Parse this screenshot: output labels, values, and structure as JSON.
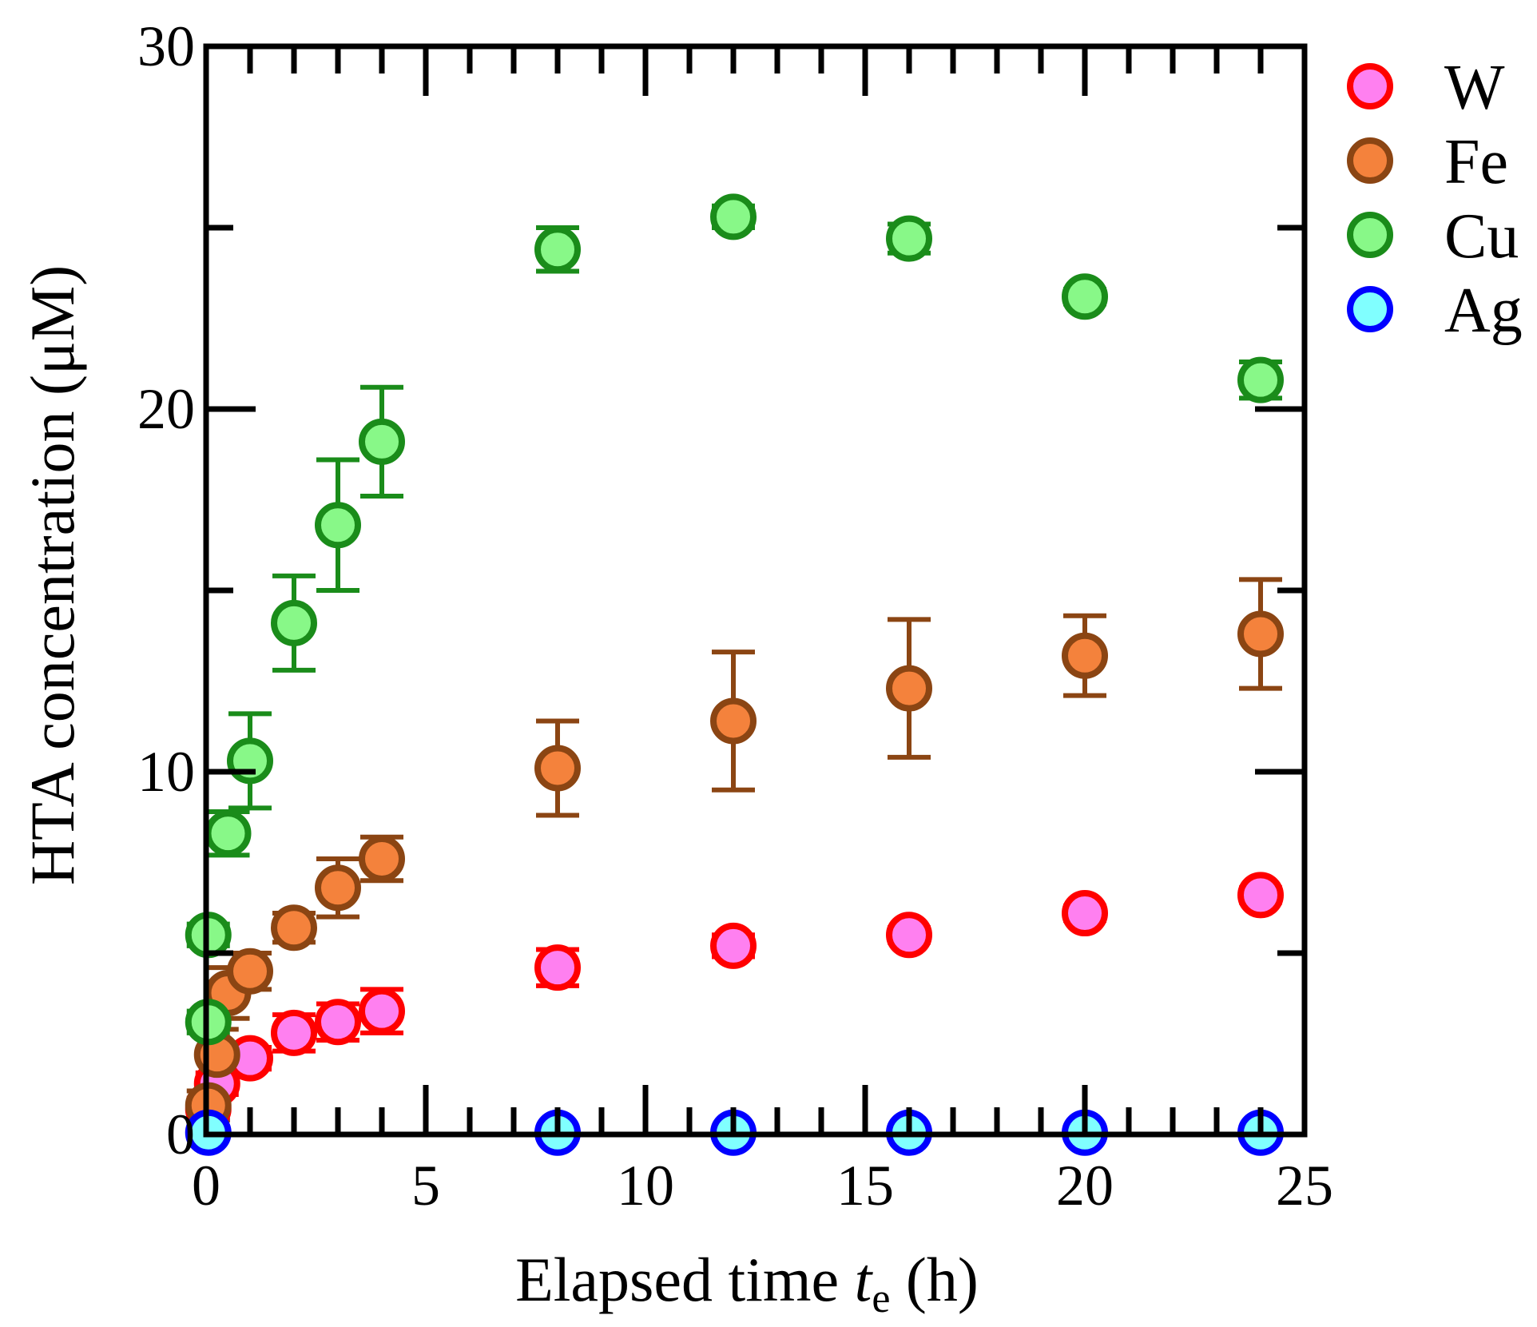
{
  "chart_data": {
    "type": "scatter",
    "xlabel": "Elapsed time",
    "xlabel_var": "t",
    "xlabel_sub": "e",
    "xlabel_unit": "(h)",
    "ylabel": "HTA concentration (μM)",
    "xlim": [
      0,
      25
    ],
    "ylim": [
      0,
      30
    ],
    "x_ticks": [
      0,
      5,
      10,
      15,
      20,
      25
    ],
    "x_tick_labels": [
      "0",
      "5",
      "10",
      "15",
      "20",
      "25"
    ],
    "y_ticks": [
      0,
      10,
      20,
      30
    ],
    "y_tick_labels": [
      "0",
      "10",
      "20",
      "30"
    ],
    "grid": false,
    "legend_position": "right",
    "series": [
      {
        "name": "W",
        "fill": "#ff80f0",
        "stroke": "#ff0000",
        "points": [
          {
            "x": 0.05,
            "y": 0.7,
            "err": 0.3
          },
          {
            "x": 0.25,
            "y": 1.4,
            "err": 0.3
          },
          {
            "x": 1,
            "y": 2.1,
            "err": 0.3
          },
          {
            "x": 2,
            "y": 2.8,
            "err": 0.5
          },
          {
            "x": 3,
            "y": 3.1,
            "err": 0.5
          },
          {
            "x": 4,
            "y": 3.4,
            "err": 0.6
          },
          {
            "x": 8,
            "y": 4.6,
            "err": 0.5
          },
          {
            "x": 12,
            "y": 5.2,
            "err": 0.3
          },
          {
            "x": 16,
            "y": 5.5,
            "err": 0.2
          },
          {
            "x": 20,
            "y": 6.1,
            "err": 0.2
          },
          {
            "x": 24,
            "y": 6.6,
            "err": 0.2
          }
        ]
      },
      {
        "name": "Fe",
        "fill": "#f4823c",
        "stroke": "#8b4513",
        "points": [
          {
            "x": 0.05,
            "y": 0.8,
            "err": 0.4
          },
          {
            "x": 0.25,
            "y": 2.2,
            "err": 0.7
          },
          {
            "x": 0.5,
            "y": 3.9,
            "err": 0.7
          },
          {
            "x": 1,
            "y": 4.5,
            "err": 0.5
          },
          {
            "x": 2,
            "y": 5.7,
            "err": 0.4
          },
          {
            "x": 3,
            "y": 6.8,
            "err": 0.8
          },
          {
            "x": 4,
            "y": 7.6,
            "err": 0.6
          },
          {
            "x": 8,
            "y": 10.1,
            "err": 1.3
          },
          {
            "x": 12,
            "y": 11.4,
            "err": 1.9
          },
          {
            "x": 16,
            "y": 12.3,
            "err": 1.9
          },
          {
            "x": 20,
            "y": 13.2,
            "err": 1.1
          },
          {
            "x": 24,
            "y": 13.8,
            "err": 1.5
          }
        ]
      },
      {
        "name": "Cu",
        "fill": "#88f888",
        "stroke": "#1a8c1a",
        "points": [
          {
            "x": 0.05,
            "y": 3.1,
            "err": 0.3
          },
          {
            "x": 0.05,
            "y": 5.5,
            "err": 0.3
          },
          {
            "x": 0.5,
            "y": 8.3,
            "err": 0.6
          },
          {
            "x": 1,
            "y": 10.3,
            "err": 1.3
          },
          {
            "x": 2,
            "y": 14.1,
            "err": 1.3
          },
          {
            "x": 3,
            "y": 16.8,
            "err": 1.8
          },
          {
            "x": 4,
            "y": 19.1,
            "err": 1.5
          },
          {
            "x": 8,
            "y": 24.4,
            "err": 0.6
          },
          {
            "x": 12,
            "y": 25.3,
            "err": 0.3
          },
          {
            "x": 16,
            "y": 24.7,
            "err": 0.4
          },
          {
            "x": 20,
            "y": 23.1,
            "err": 0.2
          },
          {
            "x": 24,
            "y": 20.8,
            "err": 0.5
          }
        ]
      },
      {
        "name": "Ag",
        "fill": "#80ffff",
        "stroke": "#0000ff",
        "points": [
          {
            "x": 0.05,
            "y": 0.05,
            "err": 0
          },
          {
            "x": 8,
            "y": 0.05,
            "err": 0
          },
          {
            "x": 12,
            "y": 0.05,
            "err": 0
          },
          {
            "x": 16,
            "y": 0.05,
            "err": 0
          },
          {
            "x": 20,
            "y": 0.05,
            "err": 0
          },
          {
            "x": 24,
            "y": 0.05,
            "err": 0
          }
        ]
      }
    ]
  }
}
